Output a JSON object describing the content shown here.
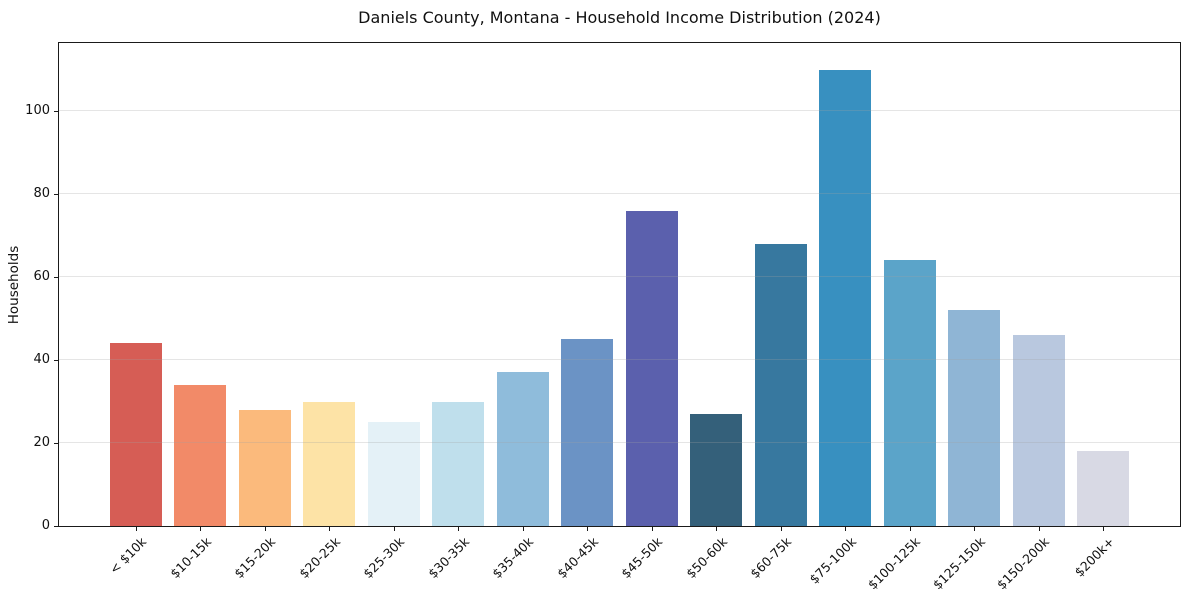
{
  "chart_data": {
    "type": "bar",
    "title": "Daniels County, Montana - Household Income Distribution (2024)",
    "xlabel": "",
    "ylabel": "Households",
    "categories": [
      "< $10k",
      "$10-15k",
      "$15-20k",
      "$20-25k",
      "$25-30k",
      "$30-35k",
      "$35-40k",
      "$40-45k",
      "$45-50k",
      "$50-60k",
      "$60-75k",
      "$75-100k",
      "$100-125k",
      "$125-150k",
      "$150-200k",
      "$200k+"
    ],
    "values": [
      44,
      34,
      28,
      30,
      25,
      30,
      37,
      45,
      76,
      27,
      68,
      110,
      64,
      52,
      46,
      18
    ],
    "bar_colors": [
      "#d65d55",
      "#f28a68",
      "#fbba7c",
      "#fde3a6",
      "#e4f1f7",
      "#bfdfec",
      "#8fbcdb",
      "#6b93c5",
      "#5b60ad",
      "#34607a",
      "#37789f",
      "#3890c0",
      "#5ba4c9",
      "#8fb5d5",
      "#b9c8df",
      "#d8d9e4"
    ],
    "yticks": [
      0,
      20,
      40,
      60,
      80,
      100
    ],
    "ylim": [
      0,
      116.4
    ],
    "grid": "horizontal-major",
    "legend": "none",
    "plot_background": "#ffffff",
    "spine_color": "#1a1a1a"
  }
}
